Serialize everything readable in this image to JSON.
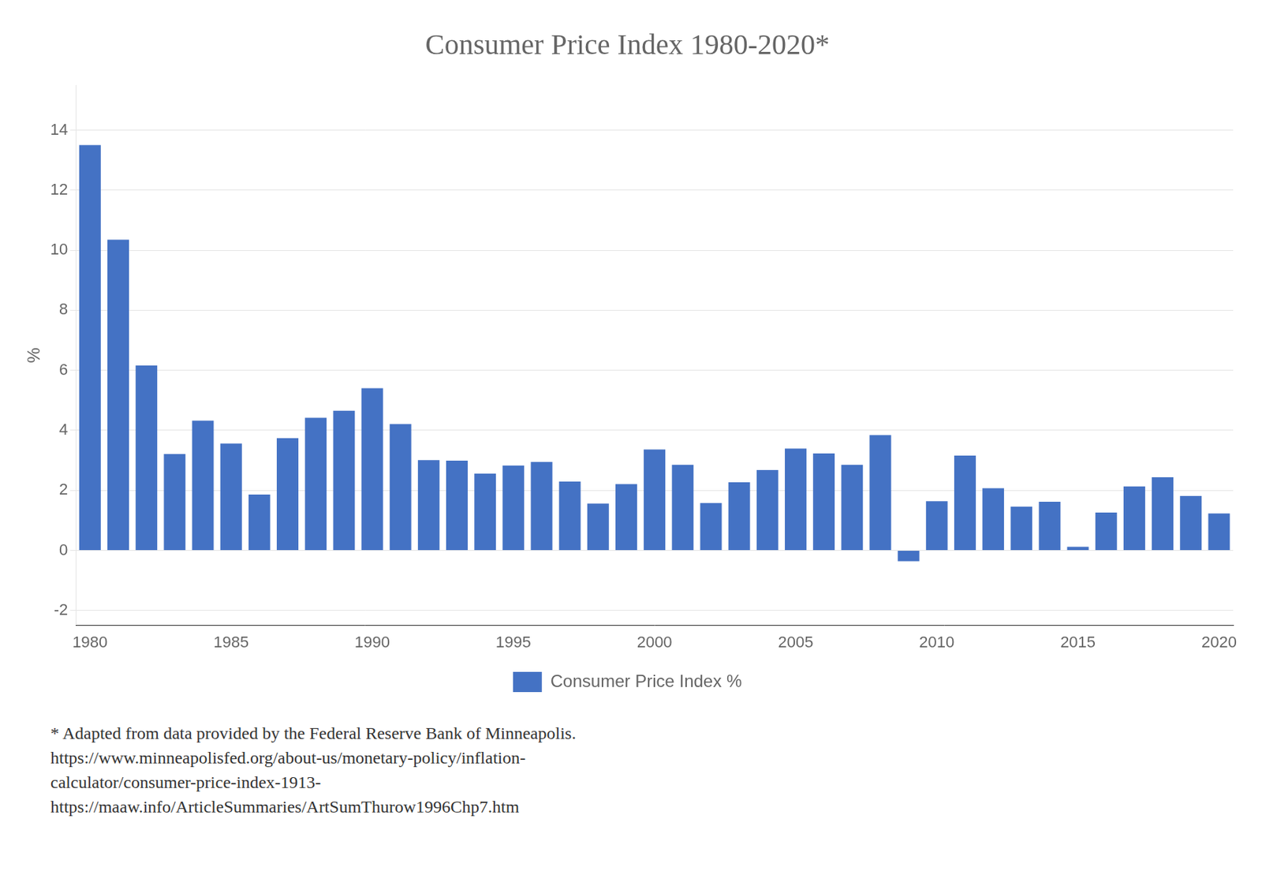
{
  "chart_data": {
    "type": "bar",
    "title": "Consumer Price Index 1980-2020*",
    "categories": [
      "1980",
      null,
      null,
      null,
      null,
      "1985",
      null,
      null,
      null,
      null,
      "1990",
      null,
      null,
      null,
      null,
      "1995",
      null,
      null,
      null,
      null,
      "2000",
      null,
      null,
      null,
      null,
      "2005",
      null,
      null,
      null,
      null,
      "2010",
      null,
      null,
      null,
      null,
      "2015",
      null,
      null,
      null,
      null,
      "2020"
    ],
    "series": [
      {
        "name": "Consumer Price Index %",
        "color": "#4472C4",
        "values": [
          13.5,
          10.35,
          6.16,
          3.21,
          4.32,
          3.56,
          1.86,
          3.74,
          4.42,
          4.65,
          5.4,
          4.21,
          3.01,
          2.99,
          2.56,
          2.83,
          2.95,
          2.29,
          1.56,
          2.21,
          3.36,
          2.85,
          1.58,
          2.27,
          2.68,
          3.39,
          3.23,
          2.85,
          3.84,
          -0.36,
          1.64,
          3.16,
          2.07,
          1.46,
          1.62,
          0.12,
          1.26,
          2.13,
          2.44,
          1.81,
          1.23
        ]
      }
    ],
    "ylabel": "%",
    "ylim": [
      -2.5,
      15.5
    ],
    "yticks": [
      -2,
      0,
      2,
      4,
      6,
      8,
      10,
      12,
      14
    ],
    "grid": true,
    "legend": "bottom",
    "annotations": [
      "* Adapted from data provided by the Federal Reserve Bank of Minneapolis.",
      "https://www.minneapolisfed.org/about-us/monetary-policy/inflation-",
      "calculator/consumer-price-index-1913-",
      "https://maaw.info/ArticleSummaries/ArtSumThurow1996Chp7.htm"
    ]
  }
}
